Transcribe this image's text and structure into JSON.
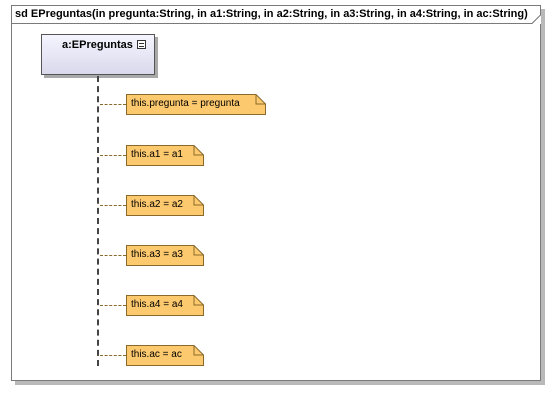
{
  "frame": {
    "title": "sd EPreguntas(in pregunta:String, in a1:String, in a2:String, in a3:String, in a4:String, in ac:String)"
  },
  "lifeline": {
    "name": "a:EPreguntas"
  },
  "notes": [
    "this.pregunta = pregunta",
    "this.a1 = a1",
    "this.a2 = a2",
    "this.a3 = a3",
    "this.a4 = a4",
    "this.ac = ac"
  ],
  "colors": {
    "note_fill": "#fdc96e",
    "note_border": "#8a6a2a",
    "lifeline_fill": "#e6e6f5"
  }
}
